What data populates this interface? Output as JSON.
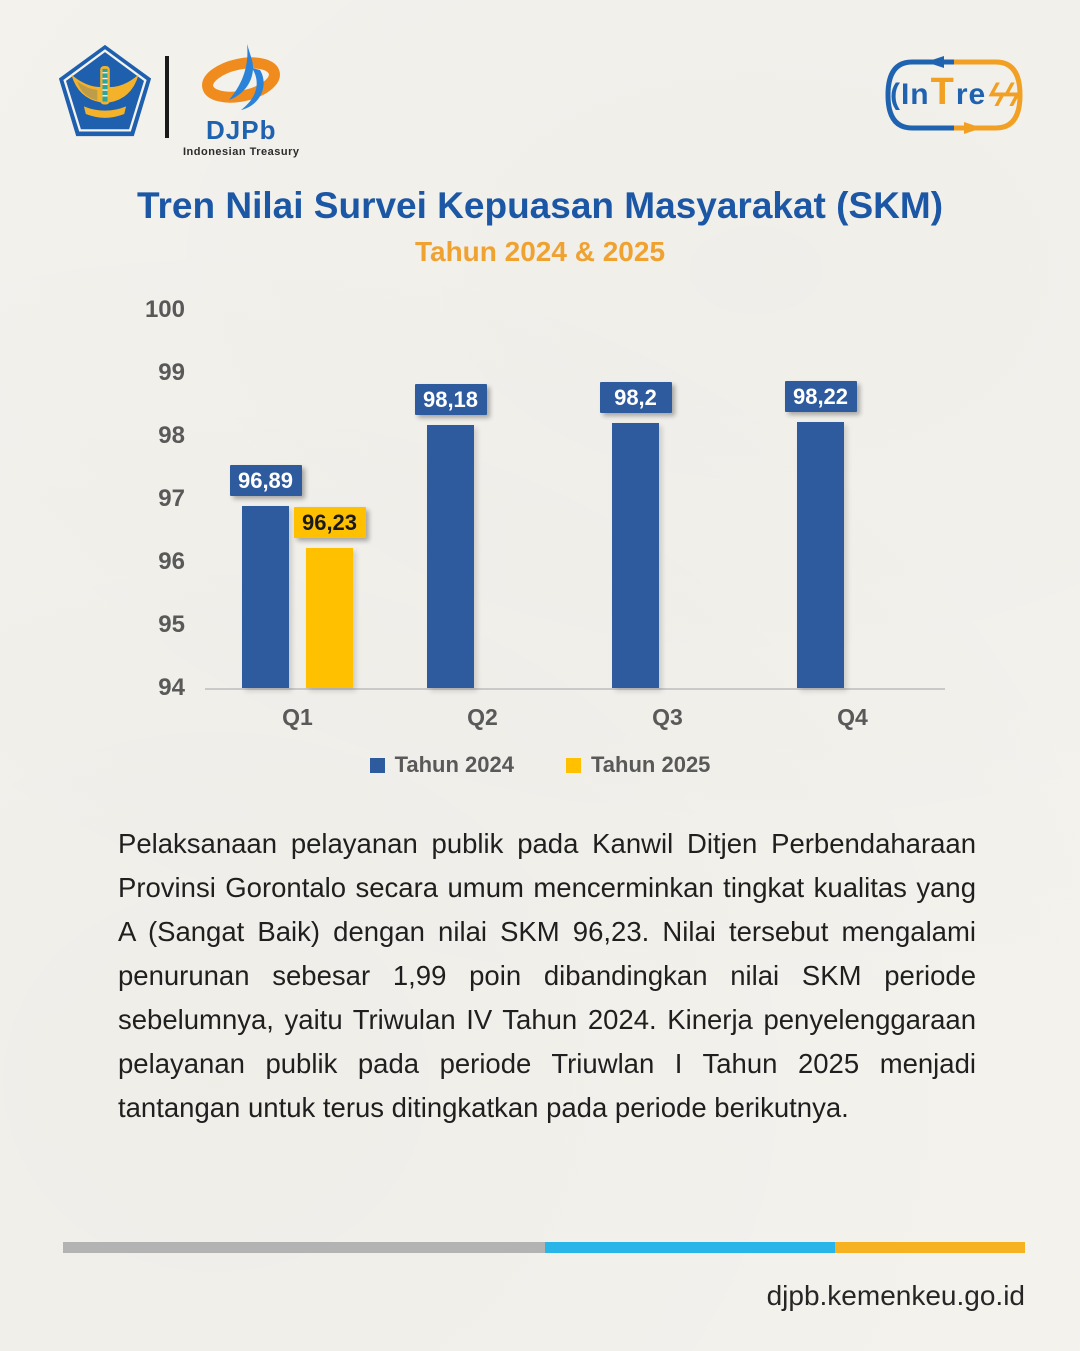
{
  "header": {
    "kemenkeu_logo": "kementerian-keuangan-pentagon-emblem",
    "djpb": {
      "name": "DJPb",
      "tagline": "Indonesian Treasury"
    },
    "intress": {
      "part_paren": "(",
      "part_in": "In",
      "part_t": "T",
      "part_re": "re",
      "part_bolts": "ϟϟ"
    }
  },
  "chart_data": {
    "type": "bar",
    "title": "Tren Nilai Survei Kepuasan Masyarakat (SKM)",
    "subtitle": "Tahun 2024 & 2025",
    "categories": [
      "Q1",
      "Q2",
      "Q3",
      "Q4"
    ],
    "series": [
      {
        "name": "Tahun 2024",
        "color": "#2e5a9e",
        "label_text_color": "#ffffff",
        "values": [
          96.89,
          98.18,
          98.2,
          98.22
        ],
        "labels": [
          "96,89",
          "98,18",
          "98,2",
          "98,22"
        ]
      },
      {
        "name": "Tahun 2025",
        "color": "#ffc000",
        "label_text_color": "#1a1a1a",
        "values": [
          96.23,
          null,
          null,
          null
        ],
        "labels": [
          "96,23",
          null,
          null,
          null
        ]
      }
    ],
    "ylim": [
      94,
      100
    ],
    "yticks": [
      100,
      99,
      98,
      97,
      96,
      95,
      94
    ],
    "grid": false,
    "legend_position": "bottom"
  },
  "body_text": "Pelaksanaan pelayanan publik pada Kanwil Ditjen Perbendaharaan Provinsi Gorontalo secara umum mencerminkan tingkat kualitas yang A (Sangat Baik) dengan nilai SKM 96,23. Nilai tersebut mengalami penurunan sebesar 1,99 poin dibandingkan nilai SKM periode sebelumnya, yaitu Triwulan IV Tahun 2024. Kinerja penyelenggaraan pelayanan publik pada periode Triuwlan I Tahun 2025 menjadi tantangan untuk terus ditingkatkan pada periode berikutnya.",
  "footer": {
    "url": "djpb.kemenkeu.go.id"
  },
  "colors": {
    "title_blue": "#1c57a5",
    "subtitle_orange": "#f0a231",
    "stripe": [
      "#b3b3b3",
      "#29b5e8",
      "#f6b221"
    ],
    "stripe_widths_pct": [
      50.1,
      30.1,
      19.8
    ],
    "axis_text": "#595959"
  }
}
